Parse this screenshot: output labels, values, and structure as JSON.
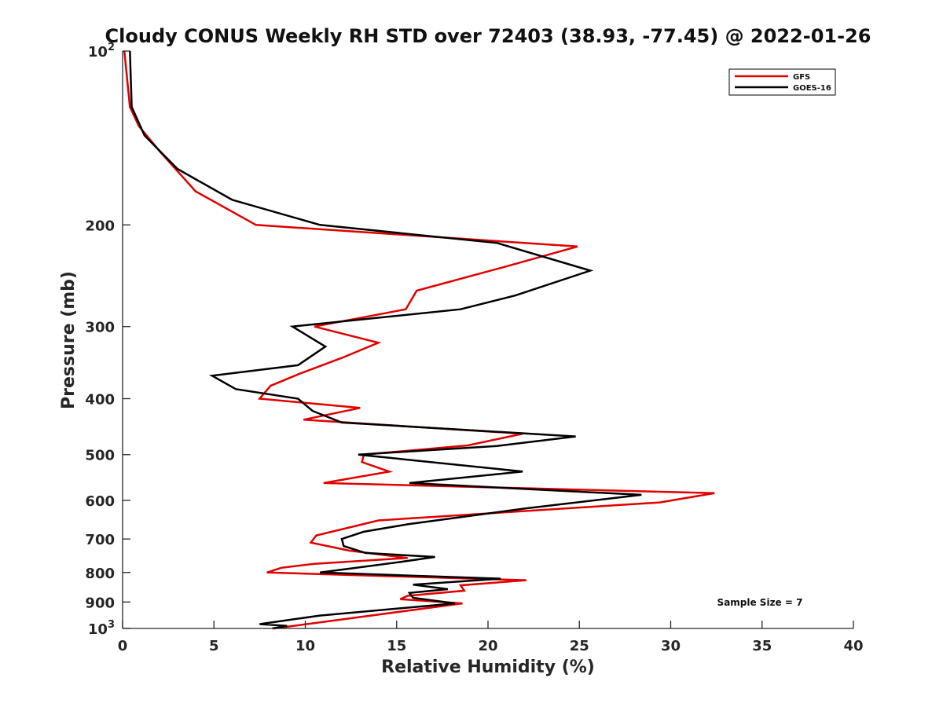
{
  "chart_data": {
    "type": "line",
    "title": "Cloudy CONUS Weekly RH STD over 72403 (38.93, -77.45) @ 2022-01-26",
    "xlabel": "Relative Humidity (%)",
    "ylabel": "Pressure (mb)",
    "xlim": [
      0,
      40
    ],
    "ylim": [
      100,
      1000
    ],
    "y_scale": "log",
    "y_reversed": true,
    "grid": false,
    "legend_position": "top-right",
    "x_ticks": [
      "0",
      "5",
      "10",
      "15",
      "20",
      "25",
      "30",
      "35",
      "40"
    ],
    "y_ticks": [
      {
        "value": 100,
        "base": "10",
        "exp": "2"
      },
      {
        "value": 200,
        "label": "200"
      },
      {
        "value": 300,
        "label": "300"
      },
      {
        "value": 400,
        "label": "400"
      },
      {
        "value": 500,
        "label": "500"
      },
      {
        "value": 600,
        "label": "600"
      },
      {
        "value": 700,
        "label": "700"
      },
      {
        "value": 800,
        "label": "800"
      },
      {
        "value": 900,
        "label": "900"
      },
      {
        "value": 1000,
        "base": "10",
        "exp": "3"
      }
    ],
    "annotation": "Sample Size = 7",
    "series": [
      {
        "name": "GFS",
        "color": "#e00000",
        "points": [
          [
            0.1,
            100
          ],
          [
            0.4,
            125
          ],
          [
            0.9,
            135
          ],
          [
            2.1,
            150
          ],
          [
            4.0,
            175
          ],
          [
            7.3,
            200
          ],
          [
            24.9,
            218
          ],
          [
            20.8,
            237
          ],
          [
            16.1,
            260
          ],
          [
            15.5,
            280
          ],
          [
            10.5,
            300
          ],
          [
            14.0,
            320
          ],
          [
            12.0,
            340
          ],
          [
            9.7,
            362
          ],
          [
            8.1,
            380
          ],
          [
            7.5,
            400
          ],
          [
            13.0,
            415
          ],
          [
            9.9,
            435
          ],
          [
            21.9,
            460
          ],
          [
            18.9,
            482
          ],
          [
            13.2,
            500
          ],
          [
            13.1,
            515
          ],
          [
            14.6,
            535
          ],
          [
            11.0,
            560
          ],
          [
            32.4,
            583
          ],
          [
            29.4,
            605
          ],
          [
            14.0,
            650
          ],
          [
            10.6,
            690
          ],
          [
            10.3,
            710
          ],
          [
            12.4,
            733
          ],
          [
            15.6,
            755
          ],
          [
            10.5,
            773
          ],
          [
            8.7,
            785
          ],
          [
            7.9,
            800
          ],
          [
            22.1,
            825
          ],
          [
            18.5,
            842
          ],
          [
            18.7,
            860
          ],
          [
            15.6,
            878
          ],
          [
            15.2,
            890
          ],
          [
            18.6,
            905
          ],
          [
            8.3,
            1000
          ]
        ]
      },
      {
        "name": "GOES-16",
        "color": "#000000",
        "points": [
          [
            0.4,
            100
          ],
          [
            0.5,
            125
          ],
          [
            1.2,
            140
          ],
          [
            3.0,
            160
          ],
          [
            6.0,
            181
          ],
          [
            10.8,
            200
          ],
          [
            20.5,
            215
          ],
          [
            25.6,
            240
          ],
          [
            21.5,
            265
          ],
          [
            18.5,
            280
          ],
          [
            9.3,
            300
          ],
          [
            11.1,
            325
          ],
          [
            9.6,
            350
          ],
          [
            4.9,
            365
          ],
          [
            6.2,
            385
          ],
          [
            9.6,
            400
          ],
          [
            10.4,
            420
          ],
          [
            12.0,
            440
          ],
          [
            24.8,
            465
          ],
          [
            20.5,
            483
          ],
          [
            12.9,
            500
          ],
          [
            21.9,
            535
          ],
          [
            15.7,
            560
          ],
          [
            28.4,
            587
          ],
          [
            22.0,
            620
          ],
          [
            15.6,
            660
          ],
          [
            13.2,
            680
          ],
          [
            12.0,
            700
          ],
          [
            12.1,
            720
          ],
          [
            13.3,
            740
          ],
          [
            17.1,
            752
          ],
          [
            15.1,
            768
          ],
          [
            12.8,
            785
          ],
          [
            10.8,
            800
          ],
          [
            20.7,
            820
          ],
          [
            15.9,
            840
          ],
          [
            17.8,
            855
          ],
          [
            15.7,
            868
          ],
          [
            15.9,
            885
          ],
          [
            18.2,
            905
          ],
          [
            10.8,
            950
          ],
          [
            7.5,
            983
          ],
          [
            9.0,
            990
          ],
          [
            8.2,
            1000
          ]
        ]
      }
    ]
  }
}
